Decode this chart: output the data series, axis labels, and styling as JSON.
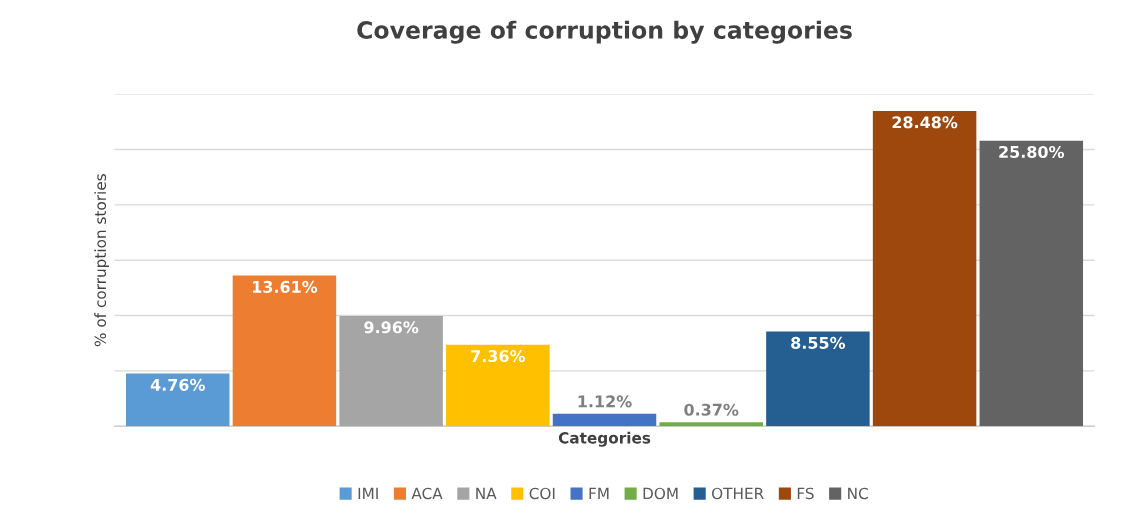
{
  "chart_data": {
    "type": "bar",
    "title": "Coverage of corruption by categories",
    "xlabel": "Categories",
    "ylabel": "% of corruption stories",
    "categories": [
      null
    ],
    "series": [
      {
        "name": "IMI",
        "color": "#5b9bd5",
        "values": [
          4.76
        ],
        "value_labels": [
          "4.76%"
        ]
      },
      {
        "name": "ACA",
        "color": "#ed7d31",
        "values": [
          13.61
        ],
        "value_labels": [
          "13.61%"
        ]
      },
      {
        "name": "NA",
        "color": "#a5a5a5",
        "values": [
          9.96
        ],
        "value_labels": [
          "9.96%"
        ]
      },
      {
        "name": "COI",
        "color": "#ffc000",
        "values": [
          7.36
        ],
        "value_labels": [
          "7.36%"
        ]
      },
      {
        "name": "FM",
        "color": "#4472c4",
        "values": [
          1.12
        ],
        "value_labels": [
          "1.12%"
        ]
      },
      {
        "name": "DOM",
        "color": "#70ad47",
        "values": [
          0.37
        ],
        "value_labels": [
          "0.37%"
        ]
      },
      {
        "name": "OTHER",
        "color": "#255e91",
        "values": [
          8.55
        ],
        "value_labels": [
          "8.55%"
        ]
      },
      {
        "name": "FS",
        "color": "#9e480e",
        "values": [
          28.48
        ],
        "value_labels": [
          "28.48%"
        ]
      },
      {
        "name": "NC",
        "color": "#636363",
        "values": [
          25.8
        ],
        "value_labels": [
          "25.80%"
        ]
      }
    ],
    "ylim": [
      0,
      30
    ],
    "yticks": [
      {
        "value": 0,
        "label": null
      },
      {
        "value": 5,
        "label": null
      },
      {
        "value": 10,
        "label": null
      },
      {
        "value": 15,
        "label": null
      },
      {
        "value": 20,
        "label": null
      },
      {
        "value": 25,
        "label": null
      },
      {
        "value": 30,
        "label": null
      }
    ],
    "grid": "y",
    "legend": "bottom",
    "tick_labels": false
  }
}
